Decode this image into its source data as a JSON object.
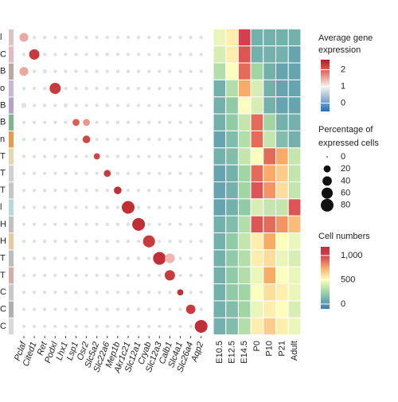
{
  "chart_data": [
    {
      "type": "dot",
      "rows": [
        "l",
        "C",
        "B",
        "o",
        "B",
        "B",
        "n",
        "T",
        "T",
        "T",
        "l",
        "H",
        "H",
        "T",
        "T",
        "C",
        "C",
        "C"
      ],
      "row_colors": [
        "#d9c3c3",
        "#e6b8c0",
        "#b9a99a",
        "#c8b6dc",
        "#b59fcf",
        "#7fb38a",
        "#e89a4a",
        "#e5d6b0",
        "#d0d0d0",
        "#c6c6c6",
        "#b6d9e0",
        "#c0c0c0",
        "#e8c79a",
        "#bdbdbd",
        "#d8a9a9",
        "#c8c8c8",
        "#b0b0b0",
        "#d8d8d8"
      ],
      "categories": [
        "Pclaf",
        "Cited1",
        "Ret",
        "Podxl",
        "Lhx1",
        "Lsp1",
        "Osr2",
        "Slc5a2",
        "Slc22a6",
        "Mep1b",
        "Akr1c21",
        "Slc12a1",
        "Cryab",
        "Slc12a3",
        "Calb1",
        "Slc4a1",
        "Slc26a4",
        "Aqp2"
      ],
      "pct": [
        [
          35,
          3,
          3,
          3,
          3,
          3,
          3,
          3,
          3,
          3,
          3,
          3,
          3,
          3,
          3,
          3,
          3,
          3
        ],
        [
          3,
          50,
          3,
          3,
          3,
          3,
          3,
          3,
          3,
          3,
          3,
          3,
          3,
          3,
          3,
          3,
          3,
          3
        ],
        [
          35,
          3,
          6,
          3,
          3,
          3,
          3,
          3,
          3,
          3,
          3,
          3,
          3,
          3,
          3,
          3,
          3,
          3
        ],
        [
          3,
          3,
          3,
          60,
          3,
          3,
          3,
          3,
          3,
          3,
          3,
          3,
          3,
          3,
          3,
          3,
          3,
          3
        ],
        [
          10,
          3,
          3,
          3,
          5,
          3,
          3,
          3,
          3,
          3,
          3,
          3,
          3,
          3,
          3,
          3,
          3,
          3
        ],
        [
          3,
          3,
          3,
          3,
          3,
          20,
          20,
          3,
          3,
          3,
          3,
          3,
          3,
          3,
          3,
          3,
          3,
          3
        ],
        [
          3,
          3,
          3,
          3,
          3,
          3,
          25,
          3,
          3,
          3,
          3,
          3,
          3,
          3,
          3,
          3,
          3,
          3
        ],
        [
          3,
          3,
          3,
          3,
          3,
          3,
          3,
          15,
          3,
          3,
          3,
          3,
          3,
          3,
          3,
          3,
          3,
          3
        ],
        [
          3,
          3,
          3,
          3,
          3,
          3,
          3,
          3,
          20,
          3,
          3,
          3,
          3,
          3,
          3,
          3,
          3,
          3
        ],
        [
          3,
          3,
          3,
          3,
          3,
          3,
          3,
          3,
          3,
          25,
          3,
          3,
          3,
          3,
          3,
          3,
          3,
          3
        ],
        [
          3,
          3,
          3,
          3,
          3,
          3,
          3,
          3,
          3,
          3,
          80,
          3,
          3,
          3,
          3,
          3,
          3,
          3
        ],
        [
          3,
          3,
          3,
          3,
          3,
          3,
          3,
          3,
          3,
          3,
          3,
          80,
          3,
          3,
          3,
          3,
          3,
          3
        ],
        [
          3,
          3,
          3,
          3,
          3,
          3,
          3,
          3,
          3,
          3,
          3,
          3,
          70,
          3,
          3,
          3,
          3,
          3
        ],
        [
          3,
          3,
          3,
          3,
          3,
          3,
          3,
          3,
          3,
          3,
          3,
          3,
          3,
          80,
          45,
          3,
          3,
          3
        ],
        [
          3,
          3,
          3,
          3,
          3,
          3,
          3,
          3,
          3,
          3,
          3,
          3,
          3,
          3,
          50,
          3,
          3,
          3
        ],
        [
          3,
          3,
          3,
          3,
          3,
          3,
          3,
          3,
          3,
          3,
          3,
          3,
          3,
          3,
          3,
          15,
          3,
          3
        ],
        [
          3,
          3,
          3,
          3,
          3,
          3,
          3,
          3,
          3,
          3,
          3,
          3,
          3,
          3,
          3,
          3,
          40,
          3
        ],
        [
          3,
          3,
          3,
          3,
          3,
          3,
          3,
          3,
          3,
          3,
          3,
          3,
          3,
          3,
          3,
          3,
          3,
          80
        ]
      ],
      "expr": [
        [
          1.5,
          0.3,
          0.3,
          0.3,
          0.3,
          0.3,
          0.3,
          0.3,
          0.3,
          0.3,
          0.3,
          0.3,
          0.3,
          0.3,
          0.3,
          0.3,
          0.3,
          0.3
        ],
        [
          0.3,
          2.3,
          0.3,
          0.3,
          0.3,
          0.3,
          0.3,
          0.3,
          0.3,
          0.3,
          0.3,
          0.3,
          0.3,
          0.3,
          0.3,
          0.3,
          0.3,
          0.3
        ],
        [
          1.5,
          0.3,
          0.8,
          0.3,
          0.3,
          0.3,
          0.3,
          0.3,
          0.3,
          0.3,
          0.3,
          0.3,
          0.3,
          0.3,
          0.3,
          0.3,
          0.3,
          0.3
        ],
        [
          0.3,
          0.3,
          0.3,
          2.3,
          0.3,
          0.3,
          0.3,
          0.3,
          0.3,
          0.3,
          0.3,
          0.3,
          0.3,
          0.3,
          0.3,
          0.3,
          0.3,
          0.3
        ],
        [
          0.8,
          0.3,
          0.3,
          0.3,
          2.0,
          0.3,
          0.3,
          0.3,
          0.3,
          0.3,
          0.3,
          0.3,
          0.3,
          0.3,
          0.3,
          0.3,
          0.3,
          0.3
        ],
        [
          0.3,
          0.3,
          0.3,
          0.3,
          0.3,
          2.0,
          1.6,
          0.3,
          0.3,
          0.3,
          0.3,
          0.3,
          0.3,
          0.3,
          0.3,
          0.3,
          0.3,
          0.3
        ],
        [
          0.3,
          0.3,
          0.3,
          0.3,
          0.3,
          0.3,
          2.2,
          0.3,
          0.3,
          0.3,
          0.3,
          0.3,
          0.3,
          0.3,
          0.3,
          0.3,
          0.3,
          0.3
        ],
        [
          0.3,
          0.3,
          0.3,
          0.3,
          0.3,
          0.3,
          0.3,
          2.2,
          0.3,
          0.3,
          0.3,
          0.3,
          0.3,
          0.3,
          0.3,
          0.3,
          0.3,
          0.3
        ],
        [
          0.3,
          0.3,
          0.3,
          0.3,
          0.3,
          0.3,
          0.3,
          0.3,
          2.3,
          0.3,
          0.3,
          0.3,
          0.3,
          0.3,
          0.3,
          0.3,
          0.3,
          0.3
        ],
        [
          0.3,
          0.3,
          0.3,
          0.3,
          0.3,
          0.3,
          0.3,
          0.3,
          0.3,
          2.4,
          0.3,
          0.3,
          0.3,
          0.3,
          0.3,
          0.3,
          0.3,
          0.3
        ],
        [
          0.3,
          0.3,
          0.3,
          0.3,
          0.3,
          0.3,
          0.3,
          0.3,
          0.3,
          0.3,
          2.4,
          0.3,
          0.3,
          0.3,
          0.3,
          0.3,
          0.3,
          0.3
        ],
        [
          0.3,
          0.3,
          0.3,
          0.3,
          0.3,
          0.3,
          0.3,
          0.3,
          0.3,
          0.3,
          0.3,
          2.4,
          0.3,
          0.3,
          0.3,
          0.3,
          0.3,
          0.3
        ],
        [
          0.3,
          0.3,
          0.3,
          0.3,
          0.3,
          0.3,
          0.3,
          0.3,
          0.3,
          0.3,
          0.3,
          0.3,
          2.3,
          0.3,
          0.3,
          0.3,
          0.3,
          0.3
        ],
        [
          0.3,
          0.3,
          0.3,
          0.3,
          0.3,
          0.3,
          0.3,
          0.3,
          0.3,
          0.3,
          0.3,
          0.3,
          0.3,
          2.4,
          1.4,
          0.3,
          0.3,
          0.3
        ],
        [
          0.3,
          0.3,
          0.3,
          0.3,
          0.3,
          0.3,
          0.3,
          0.3,
          0.3,
          0.3,
          0.3,
          0.3,
          0.3,
          0.3,
          2.3,
          0.3,
          0.3,
          0.3
        ],
        [
          0.3,
          0.3,
          0.3,
          0.3,
          0.3,
          0.3,
          0.3,
          0.3,
          0.3,
          0.3,
          0.3,
          0.3,
          0.3,
          0.3,
          0.3,
          2.4,
          0.3,
          0.3
        ],
        [
          0.3,
          0.3,
          0.3,
          0.3,
          0.3,
          0.3,
          0.3,
          0.3,
          0.3,
          0.3,
          0.3,
          0.3,
          0.3,
          0.3,
          0.3,
          0.3,
          2.3,
          0.3
        ],
        [
          0.3,
          0.3,
          0.3,
          0.3,
          0.3,
          0.3,
          0.3,
          0.3,
          0.3,
          0.3,
          0.3,
          0.3,
          0.3,
          0.3,
          0.3,
          0.3,
          0.3,
          2.4
        ]
      ],
      "color_title": [
        "Average gene",
        "expression"
      ],
      "color_lim": [
        -0.5,
        2.6
      ],
      "color_ticks": [
        2,
        1,
        0
      ],
      "size_title": [
        "Percentage of",
        "expressed cells"
      ],
      "size_ticks": [
        0,
        20,
        40,
        60,
        80
      ]
    },
    {
      "type": "heatmap",
      "x": [
        "E10.5",
        "E12.5",
        "E14.5",
        "P0",
        "P10",
        "P21",
        "Adult"
      ],
      "values": [
        [
          450,
          550,
          1000,
          100,
          100,
          100,
          100
        ],
        [
          400,
          550,
          950,
          100,
          100,
          100,
          50
        ],
        [
          300,
          500,
          900,
          250,
          100,
          50,
          50
        ],
        [
          100,
          300,
          750,
          400,
          100,
          50,
          50
        ],
        [
          100,
          200,
          500,
          400,
          100,
          50,
          50
        ],
        [
          100,
          200,
          350,
          900,
          250,
          100,
          100
        ],
        [
          50,
          150,
          300,
          900,
          350,
          150,
          100
        ],
        [
          100,
          150,
          350,
          500,
          900,
          750,
          350
        ],
        [
          50,
          100,
          250,
          900,
          750,
          650,
          350
        ],
        [
          50,
          100,
          250,
          950,
          800,
          600,
          350
        ],
        [
          50,
          100,
          200,
          400,
          350,
          350,
          950
        ],
        [
          100,
          150,
          300,
          950,
          900,
          800,
          700
        ],
        [
          100,
          200,
          350,
          550,
          750,
          500,
          450
        ],
        [
          100,
          200,
          300,
          550,
          600,
          450,
          400
        ],
        [
          100,
          200,
          300,
          450,
          750,
          500,
          450
        ],
        [
          100,
          200,
          250,
          500,
          600,
          550,
          450
        ],
        [
          100,
          150,
          250,
          450,
          550,
          500,
          400
        ],
        [
          100,
          150,
          300,
          550,
          650,
          550,
          450
        ]
      ],
      "color_title": "Cell numbers",
      "color_lim": [
        -100,
        1180
      ],
      "color_ticks": [
        {
          "value": 1000,
          "label": "1,000"
        },
        500,
        0
      ]
    }
  ]
}
